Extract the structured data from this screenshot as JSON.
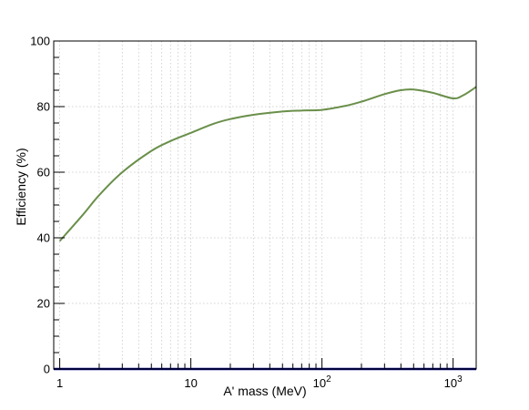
{
  "chart_data": {
    "type": "line",
    "title": "",
    "xlabel": "A' mass (MeV)",
    "ylabel": "Efficiency (%)",
    "x_scale": "log",
    "xlim": [
      0.9,
      1500
    ],
    "ylim": [
      0,
      100
    ],
    "grid": true,
    "x_ticks": [
      {
        "value": 1,
        "base": "1",
        "exp": ""
      },
      {
        "value": 10,
        "base": "10",
        "exp": ""
      },
      {
        "value": 100,
        "base": "10",
        "exp": "2"
      },
      {
        "value": 1000,
        "base": "10",
        "exp": "3"
      }
    ],
    "y_ticks": [
      {
        "value": 0,
        "label": "0"
      },
      {
        "value": 20,
        "label": "20"
      },
      {
        "value": 40,
        "label": "40"
      },
      {
        "value": 60,
        "label": "60"
      },
      {
        "value": 80,
        "label": "80"
      },
      {
        "value": 100,
        "label": "100"
      }
    ],
    "series": [
      {
        "color": "#6a8f4a",
        "x": [
          1,
          1.5,
          2,
          3,
          5,
          7,
          10,
          15,
          20,
          30,
          50,
          70,
          100,
          150,
          200,
          300,
          400,
          500,
          700,
          1000,
          1200,
          1500
        ],
        "y": [
          39,
          47,
          53,
          60,
          66.5,
          69.5,
          72,
          74.8,
          76.2,
          77.5,
          78.5,
          78.8,
          79,
          80.2,
          81.5,
          83.8,
          85,
          85.2,
          84.2,
          82.5,
          83.5,
          86
        ]
      },
      {
        "color": "#00007a",
        "x": [
          0.9,
          1500
        ],
        "y": [
          0,
          0
        ]
      }
    ]
  }
}
